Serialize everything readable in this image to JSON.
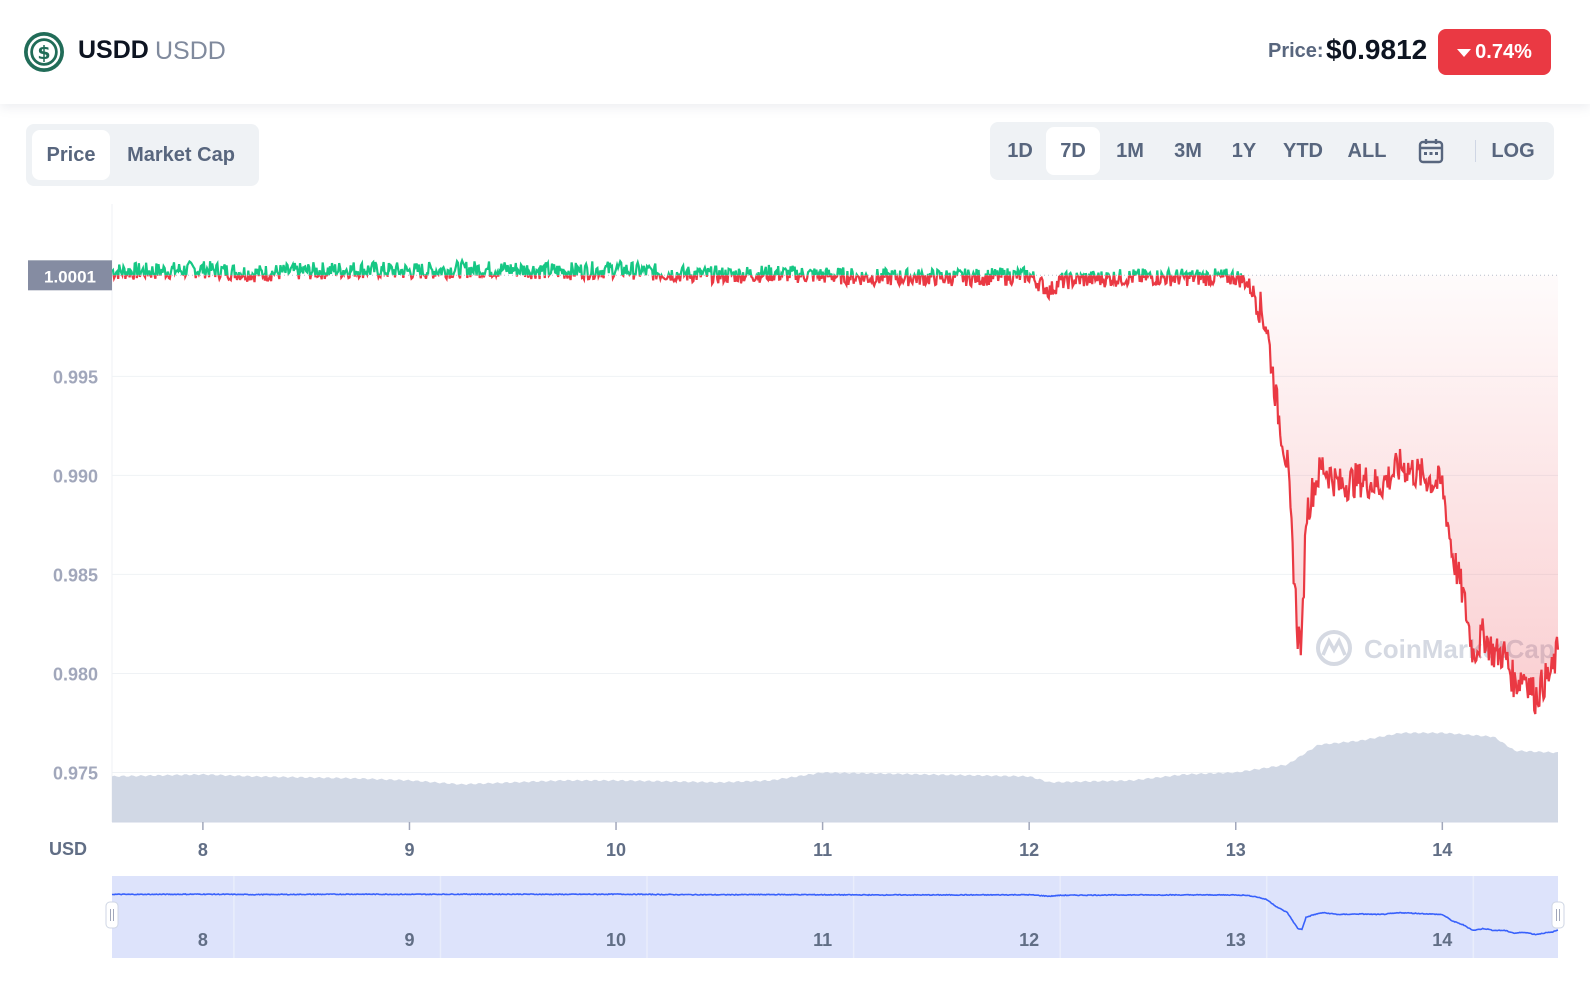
{
  "header": {
    "name": "USDD",
    "symbol": "USDD",
    "price_label": "Price:",
    "price_value": "$0.9812",
    "change": "0.74%",
    "change_color": "#ea3943"
  },
  "metric_tabs": [
    {
      "label": "Price",
      "active": true
    },
    {
      "label": "Market Cap",
      "active": false
    }
  ],
  "range_tabs": [
    {
      "label": "1D",
      "active": false
    },
    {
      "label": "7D",
      "active": true
    },
    {
      "label": "1M",
      "active": false
    },
    {
      "label": "3M",
      "active": false
    },
    {
      "label": "1Y",
      "active": false
    },
    {
      "label": "YTD",
      "active": false
    },
    {
      "label": "ALL",
      "active": false
    }
  ],
  "log_label": "LOG",
  "calendar_icon": "calendar-icon",
  "watermark": "CoinMarketCap",
  "colors": {
    "up": "#16c784",
    "down": "#ea3943",
    "volume": "#cfd6e4",
    "navigator_line": "#3861fb",
    "navigator_fill": "#dde3fb"
  },
  "chart_data": {
    "type": "line",
    "currency_label": "USD",
    "reference_price": 1.0001,
    "reference_label": "1.0001",
    "y_ticks": [
      "0.975",
      "0.980",
      "0.985",
      "0.990",
      "0.995"
    ],
    "y_tick_values": [
      0.975,
      0.98,
      0.985,
      0.99,
      0.995
    ],
    "ylim": [
      0.9725,
      1.0037
    ],
    "x_ticks": [
      "8",
      "9",
      "10",
      "11",
      "12",
      "13",
      "14"
    ],
    "x_tick_values": [
      8,
      9,
      10,
      11,
      12,
      13,
      14
    ],
    "xlim": [
      7.56,
      14.56
    ],
    "grid": true,
    "series": [
      {
        "x": [
          7.56,
          7.75,
          8.0,
          8.25,
          8.5,
          8.75,
          9.0,
          9.25,
          9.5,
          9.75,
          10.0,
          10.25,
          10.5,
          10.75,
          11.0,
          11.25,
          11.5,
          11.75,
          12.0,
          12.1,
          12.15,
          12.25,
          12.5,
          12.75,
          12.9,
          13.0,
          13.05,
          13.1,
          13.15,
          13.2,
          13.25,
          13.3,
          13.32,
          13.34,
          13.38,
          13.42,
          13.5,
          13.6,
          13.7,
          13.8,
          13.9,
          14.0,
          14.05,
          14.1,
          14.15,
          14.2,
          14.25,
          14.3,
          14.35,
          14.4,
          14.45,
          14.5,
          14.53,
          14.56
        ],
        "y": [
          1.0003,
          1.0003,
          1.0004,
          1.0002,
          1.0003,
          1.0004,
          1.0003,
          1.0004,
          1.0004,
          1.0003,
          1.0004,
          1.0002,
          1.0001,
          1.0002,
          1.0001,
          1.0,
          1.0,
          1.0,
          1.0001,
          0.9993,
          0.9998,
          0.9999,
          1.0,
          1.0,
          1.0,
          1.0,
          0.9998,
          0.999,
          0.9975,
          0.9935,
          0.9905,
          0.982,
          0.9815,
          0.988,
          0.9895,
          0.9905,
          0.9895,
          0.9898,
          0.9895,
          0.9905,
          0.99,
          0.9895,
          0.986,
          0.984,
          0.981,
          0.982,
          0.981,
          0.981,
          0.9795,
          0.98,
          0.9788,
          0.9797,
          0.98,
          0.9812
        ]
      }
    ],
    "volume": {
      "x": [
        7.56,
        8.0,
        8.25,
        8.75,
        9.0,
        9.25,
        9.75,
        10.0,
        10.5,
        10.75,
        11.0,
        11.5,
        12.0,
        12.1,
        12.5,
        12.75,
        13.0,
        13.25,
        13.4,
        13.6,
        13.8,
        14.0,
        14.25,
        14.35,
        14.56
      ],
      "values": [
        0.9748,
        0.9749,
        0.9748,
        0.9747,
        0.9746,
        0.9744,
        0.9746,
        0.9746,
        0.9745,
        0.9746,
        0.975,
        0.9749,
        0.9748,
        0.9745,
        0.9746,
        0.9749,
        0.975,
        0.9754,
        0.9764,
        0.9766,
        0.977,
        0.977,
        0.9768,
        0.9761,
        0.976
      ]
    },
    "navigator_x_ticks": [
      "8",
      "9",
      "10",
      "11",
      "12",
      "13",
      "14"
    ]
  }
}
